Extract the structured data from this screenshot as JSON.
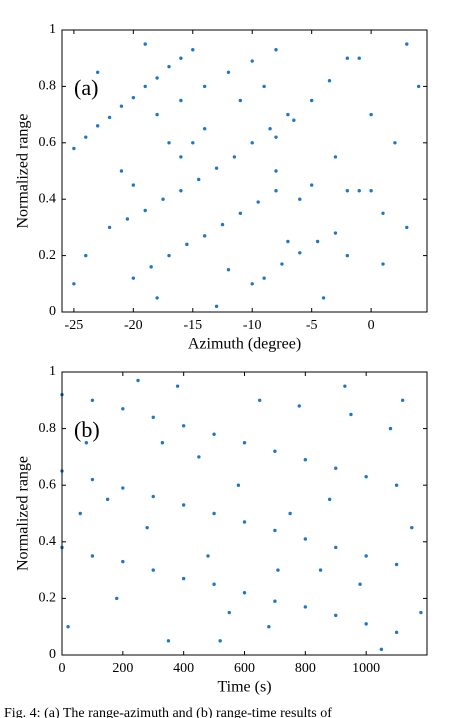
{
  "chart_data": [
    {
      "type": "scatter",
      "annotation": "(a)",
      "xlabel": "Azimuth (degree)",
      "ylabel": "Normalized range",
      "xlim": [
        -26,
        4.7
      ],
      "ylim": [
        0,
        1
      ],
      "xticks": [
        -25,
        -20,
        -15,
        -10,
        -5,
        0
      ],
      "yticks": [
        0,
        0.2,
        0.4,
        0.6,
        0.8,
        1
      ],
      "series": [
        {
          "color": "#1f77c4",
          "x": [
            -25,
            -24,
            -23,
            -22,
            -21,
            -20,
            -19,
            -18,
            -17,
            -16,
            -15
          ],
          "y": [
            0.58,
            0.62,
            0.66,
            0.69,
            0.73,
            0.76,
            0.8,
            0.83,
            0.87,
            0.9,
            0.93
          ]
        },
        {
          "color": "#1f77c4",
          "x": [
            -22,
            -20.5,
            -19,
            -17.5,
            -16,
            -14.5,
            -13,
            -11.5,
            -10,
            -8.5,
            -7
          ],
          "y": [
            0.3,
            0.33,
            0.36,
            0.4,
            0.43,
            0.47,
            0.51,
            0.55,
            0.6,
            0.65,
            0.7
          ]
        },
        {
          "color": "#1f77c4",
          "x": [
            -20,
            -18.5,
            -17,
            -15.5,
            -14,
            -12.5,
            -11,
            -9.5,
            -8
          ],
          "y": [
            0.12,
            0.16,
            0.2,
            0.24,
            0.27,
            0.31,
            0.35,
            0.39,
            0.43
          ]
        },
        {
          "color": "#1f77c4",
          "x": [
            -18,
            -16,
            -14,
            -12,
            -10,
            -8
          ],
          "y": [
            0.7,
            0.75,
            0.8,
            0.85,
            0.89,
            0.93
          ]
        },
        {
          "color": "#1f77c4",
          "x": [
            -8,
            -6.5,
            -5,
            -3.5,
            -2
          ],
          "y": [
            0.62,
            0.68,
            0.75,
            0.82,
            0.9
          ]
        },
        {
          "color": "#1f77c4",
          "x": [
            -9,
            -7.5,
            -6,
            -4.5,
            -3,
            -2,
            -1,
            0,
            1
          ],
          "y": [
            0.12,
            0.17,
            0.21,
            0.25,
            0.28,
            0.43,
            0.43,
            0.43,
            0.17
          ]
        },
        {
          "color": "#1f77c4",
          "x": [
            -24,
            -21,
            -18,
            -15,
            -12,
            -9,
            -6,
            -3,
            0,
            3,
            -23,
            -19,
            -13,
            -7,
            -1,
            2,
            -25,
            -16,
            -11,
            -4,
            1,
            4,
            -20,
            -14,
            -8,
            -2,
            -17,
            -10,
            -5,
            3
          ],
          "y": [
            0.2,
            0.5,
            0.05,
            0.6,
            0.15,
            0.8,
            0.4,
            0.55,
            0.7,
            0.3,
            0.85,
            0.95,
            0.02,
            0.25,
            0.9,
            0.6,
            0.1,
            0.55,
            0.75,
            0.05,
            0.35,
            0.8,
            0.45,
            0.65,
            0.5,
            0.2,
            0.6,
            0.1,
            0.45,
            0.95
          ]
        }
      ]
    },
    {
      "type": "scatter",
      "annotation": "(b)",
      "xlabel": "Time (s)",
      "ylabel": "Normalized range",
      "xlim": [
        0,
        1200
      ],
      "ylim": [
        0,
        1
      ],
      "xticks": [
        0,
        200,
        400,
        600,
        800,
        1000
      ],
      "yticks": [
        0,
        0.2,
        0.4,
        0.6,
        0.8,
        1
      ],
      "series": [
        {
          "color": "#1f77c4",
          "x": [
            0,
            100,
            200,
            300,
            400,
            500,
            600,
            700,
            800,
            900,
            1000,
            1100
          ],
          "y": [
            0.92,
            0.9,
            0.87,
            0.84,
            0.81,
            0.78,
            0.75,
            0.72,
            0.69,
            0.66,
            0.63,
            0.6
          ]
        },
        {
          "color": "#1f77c4",
          "x": [
            0,
            100,
            200,
            300,
            400,
            500,
            600,
            700,
            800,
            900,
            1000,
            1100
          ],
          "y": [
            0.65,
            0.62,
            0.59,
            0.56,
            0.53,
            0.5,
            0.47,
            0.44,
            0.41,
            0.38,
            0.35,
            0.32
          ]
        },
        {
          "color": "#1f77c4",
          "x": [
            0,
            100,
            200,
            300,
            400,
            500,
            600,
            700,
            800,
            900,
            1000,
            1100
          ],
          "y": [
            0.38,
            0.35,
            0.33,
            0.3,
            0.27,
            0.25,
            0.22,
            0.19,
            0.17,
            0.14,
            0.11,
            0.08
          ]
        },
        {
          "color": "#1f77c4",
          "x": [
            20,
            150,
            250,
            350,
            450,
            550,
            650,
            750,
            850,
            950,
            1050,
            1150,
            80,
            180,
            280,
            380,
            480,
            580,
            680,
            780,
            880,
            980,
            1080,
            1180,
            60,
            330,
            520,
            710,
            930,
            1120
          ],
          "y": [
            0.1,
            0.55,
            0.97,
            0.05,
            0.7,
            0.15,
            0.9,
            0.5,
            0.3,
            0.85,
            0.02,
            0.45,
            0.75,
            0.2,
            0.45,
            0.95,
            0.35,
            0.6,
            0.1,
            0.88,
            0.55,
            0.25,
            0.8,
            0.15,
            0.5,
            0.75,
            0.05,
            0.3,
            0.95,
            0.9
          ]
        }
      ]
    }
  ],
  "caption": "Fig. 4: (a) The range-azimuth and (b) range-time results of"
}
